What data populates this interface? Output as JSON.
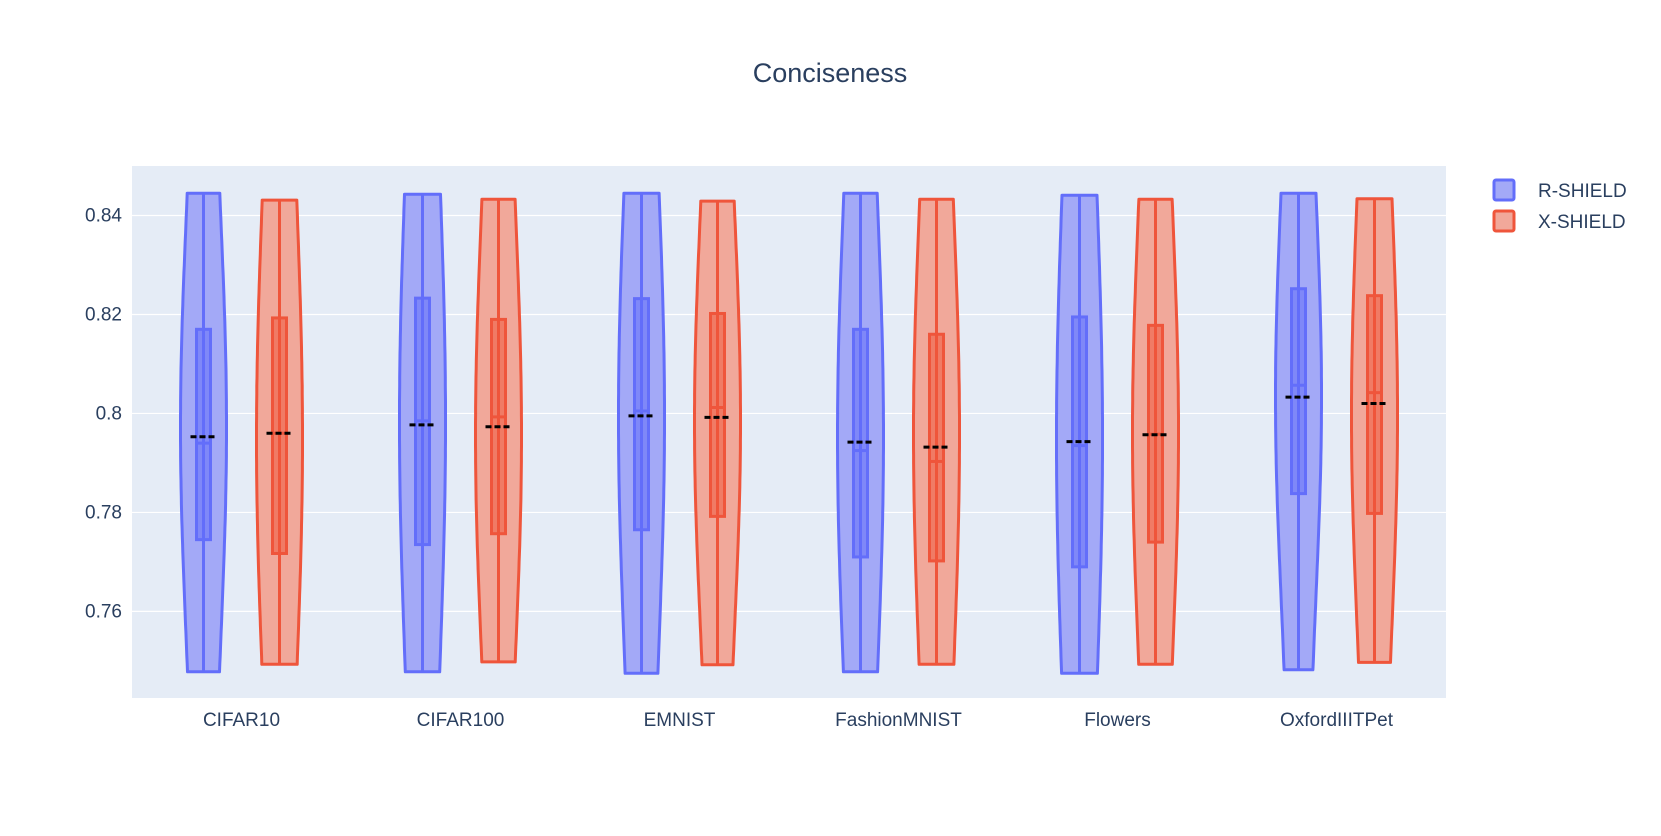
{
  "chart_data": {
    "type": "violin",
    "title": "Conciseness",
    "xlabel": "",
    "ylabel": "",
    "ylim": [
      0.7425,
      0.85
    ],
    "y_ticks": [
      0.76,
      0.78,
      0.8,
      0.82,
      0.84
    ],
    "y_tick_labels": [
      "0.76",
      "0.78",
      "0.8",
      "0.82",
      "0.84"
    ],
    "grid": true,
    "legend_position": "top-right",
    "categories": [
      "CIFAR10",
      "CIFAR100",
      "EMNIST",
      "FashionMNIST",
      "Flowers",
      "OxfordIIITPet"
    ],
    "series": [
      {
        "name": "R-SHIELD",
        "color": "#636efa",
        "fill": "#a3a9f7",
        "stats": [
          {
            "min": 0.7478,
            "q1": 0.7745,
            "median": 0.794,
            "mean": 0.7953,
            "q3": 0.817,
            "max": 0.8445
          },
          {
            "min": 0.7478,
            "q1": 0.7735,
            "median": 0.7985,
            "mean": 0.7977,
            "q3": 0.8233,
            "max": 0.8443
          },
          {
            "min": 0.7475,
            "q1": 0.7765,
            "median": 0.8005,
            "mean": 0.7995,
            "q3": 0.8232,
            "max": 0.8445
          },
          {
            "min": 0.7478,
            "q1": 0.771,
            "median": 0.7925,
            "mean": 0.7942,
            "q3": 0.817,
            "max": 0.8445
          },
          {
            "min": 0.7475,
            "q1": 0.769,
            "median": 0.7935,
            "mean": 0.7943,
            "q3": 0.8195,
            "max": 0.8441
          },
          {
            "min": 0.7482,
            "q1": 0.7838,
            "median": 0.8057,
            "mean": 0.8033,
            "q3": 0.8252,
            "max": 0.8445
          }
        ]
      },
      {
        "name": "X-SHIELD",
        "color": "#ef553b",
        "fill": "#f1a89a",
        "stats": [
          {
            "min": 0.7493,
            "q1": 0.7717,
            "median": 0.796,
            "mean": 0.796,
            "q3": 0.8193,
            "max": 0.8431
          },
          {
            "min": 0.7498,
            "q1": 0.7757,
            "median": 0.7993,
            "mean": 0.7973,
            "q3": 0.819,
            "max": 0.8433
          },
          {
            "min": 0.7492,
            "q1": 0.7792,
            "median": 0.8012,
            "mean": 0.7992,
            "q3": 0.8202,
            "max": 0.8429
          },
          {
            "min": 0.7493,
            "q1": 0.7702,
            "median": 0.7903,
            "mean": 0.7932,
            "q3": 0.816,
            "max": 0.8433
          },
          {
            "min": 0.7493,
            "q1": 0.774,
            "median": 0.7958,
            "mean": 0.7957,
            "q3": 0.8178,
            "max": 0.8433
          },
          {
            "min": 0.7497,
            "q1": 0.7798,
            "median": 0.8042,
            "mean": 0.802,
            "q3": 0.8238,
            "max": 0.8434
          }
        ]
      }
    ]
  }
}
